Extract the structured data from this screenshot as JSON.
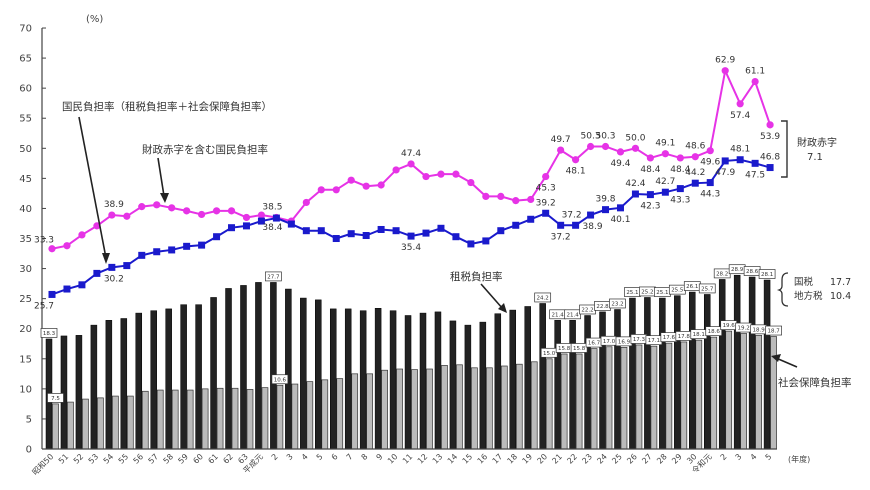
{
  "chart_data": {
    "type": "bar+line",
    "title": "",
    "ylabel": "(%)",
    "xlabel": "(年度)",
    "ylim": [
      0,
      70
    ],
    "yticks": [
      0,
      5,
      10,
      15,
      20,
      25,
      30,
      35,
      40,
      45,
      50,
      55,
      60,
      65,
      70
    ],
    "grid": false,
    "categories": [
      "昭和50",
      "51",
      "52",
      "53",
      "54",
      "55",
      "56",
      "57",
      "58",
      "59",
      "60",
      "61",
      "62",
      "63",
      "平成元",
      "2",
      "3",
      "4",
      "5",
      "6",
      "7",
      "8",
      "9",
      "10",
      "11",
      "12",
      "13",
      "14",
      "15",
      "16",
      "17",
      "18",
      "19",
      "20",
      "21",
      "22",
      "23",
      "24",
      "25",
      "26",
      "27",
      "28",
      "29",
      "30",
      "令和元",
      "2",
      "3",
      "4",
      "5"
    ],
    "series": [
      {
        "name": "国民負担率（租税負担率＋社会保障負担率）",
        "type": "line",
        "color": "#1a1acc",
        "values": [
          25.7,
          26.6,
          27.3,
          29.2,
          30.2,
          30.5,
          32.2,
          32.8,
          33.1,
          33.7,
          33.9,
          35.3,
          36.8,
          37.1,
          37.9,
          38.4,
          37.4,
          36.3,
          36.3,
          35.0,
          35.8,
          35.5,
          36.5,
          36.3,
          35.4,
          35.9,
          36.7,
          35.3,
          34.1,
          34.6,
          36.3,
          37.2,
          38.2,
          39.2,
          37.2,
          37.2,
          38.9,
          39.8,
          40.1,
          42.4,
          42.3,
          42.7,
          43.3,
          44.2,
          44.3,
          47.9,
          48.1,
          47.5,
          46.8
        ]
      },
      {
        "name": "財政赤字を含む国民負担率",
        "type": "line",
        "color": "#e633e6",
        "values": [
          33.3,
          33.8,
          35.6,
          37.1,
          38.9,
          38.7,
          40.3,
          40.6,
          40.1,
          39.6,
          39.0,
          39.6,
          39.6,
          38.5,
          38.9,
          38.5,
          37.9,
          41.0,
          43.1,
          43.1,
          44.7,
          43.7,
          43.9,
          46.4,
          47.4,
          45.3,
          45.7,
          45.7,
          44.3,
          42.0,
          42.0,
          41.3,
          41.5,
          45.3,
          49.7,
          48.1,
          50.3,
          50.3,
          49.4,
          50.0,
          48.4,
          49.1,
          48.4,
          48.6,
          49.6,
          62.9,
          57.4,
          61.1,
          53.9
        ]
      },
      {
        "name": "租税負担率",
        "type": "bar",
        "color": "#222222",
        "values": [
          18.3,
          18.8,
          18.9,
          20.6,
          21.4,
          21.7,
          22.6,
          23.0,
          23.3,
          24.0,
          24.0,
          25.2,
          26.7,
          27.2,
          27.7,
          27.7,
          26.6,
          25.1,
          24.8,
          23.3,
          23.3,
          23.0,
          23.4,
          23.0,
          22.2,
          22.6,
          22.8,
          21.3,
          20.6,
          21.1,
          22.5,
          23.1,
          23.7,
          24.2,
          21.4,
          21.4,
          22.2,
          22.8,
          23.2,
          25.1,
          25.2,
          25.1,
          25.5,
          26.1,
          25.7,
          28.2,
          28.9,
          28.6,
          28.1
        ]
      },
      {
        "name": "社会保障負担率",
        "type": "bar",
        "color": "#bbbbbb",
        "values": [
          7.5,
          7.8,
          8.3,
          8.5,
          8.8,
          8.8,
          9.6,
          9.8,
          9.8,
          9.8,
          10.0,
          10.1,
          10.1,
          9.9,
          10.2,
          10.6,
          10.8,
          11.2,
          11.5,
          11.7,
          12.5,
          12.5,
          13.1,
          13.3,
          13.2,
          13.3,
          13.9,
          14.0,
          13.5,
          13.5,
          13.8,
          14.1,
          14.5,
          15.0,
          15.8,
          15.8,
          16.7,
          17.0,
          16.9,
          17.3,
          17.1,
          17.6,
          17.8,
          18.1,
          18.6,
          19.6,
          19.2,
          18.9,
          18.7
        ]
      }
    ],
    "point_labels": {
      "national": {
        "0": "25.7",
        "4": "30.2",
        "15": "38.4",
        "24": "35.4",
        "33": "39.2",
        "34": "37.2",
        "35": "37.2",
        "36": "38.9",
        "37": "39.8",
        "38": "40.1",
        "39": "42.4",
        "40": "42.3",
        "41": "42.7",
        "42": "43.3",
        "43": "44.2",
        "44": "44.3",
        "45": "47.9",
        "46": "48.1",
        "47": "47.5",
        "48": "46.8"
      },
      "deficit": {
        "0": "33.3",
        "4": "38.9",
        "15": "38.5",
        "24": "47.4",
        "33": "45.3",
        "34": "49.7",
        "35": "48.1",
        "36": "50.3",
        "37": "50.3",
        "38": "49.4",
        "39": "50.0",
        "40": "48.4",
        "41": "49.1",
        "42": "48.4",
        "43": "48.6",
        "44": "49.6",
        "45": "62.9",
        "46": "57.4",
        "47": "61.1",
        "48": "53.9"
      }
    },
    "box_labels": {
      "tax": {
        "0": "18.3",
        "15": "27.7",
        "33": "24.2",
        "34": "21.4",
        "35": "21.4",
        "36": "22.2",
        "37": "22.8",
        "38": "23.2",
        "39": "25.1",
        "40": "25.2",
        "41": "25.1",
        "42": "25.5",
        "43": "26.1",
        "44": "25.7",
        "45": "28.2",
        "46": "28.9",
        "47": "28.6",
        "48": "28.1"
      },
      "social": {
        "0": "7.5",
        "15": "10.6",
        "33": "15.0",
        "34": "15.8",
        "35": "15.8",
        "36": "16.7",
        "37": "17.0",
        "38": "16.9",
        "39": "17.3",
        "40": "17.1",
        "41": "17.6",
        "42": "17.8",
        "43": "18.1",
        "44": "18.6",
        "45": "19.6",
        "46": "19.2",
        "47": "18.9",
        "48": "18.7"
      }
    },
    "annotations": {
      "national_label": "国民負担率（租税負担率＋社会保障負担率）",
      "deficit_label": "財政赤字を含む国民負担率",
      "tax_label": "租税負担率",
      "social_label": "社会保障負担率",
      "deficit_bracket_title": "財政赤字",
      "deficit_bracket_value": "7.1",
      "tax_breakdown_national_label": "国税",
      "tax_breakdown_national_value": "17.7",
      "tax_breakdown_local_label": "地方税",
      "tax_breakdown_local_value": "10.4"
    }
  }
}
